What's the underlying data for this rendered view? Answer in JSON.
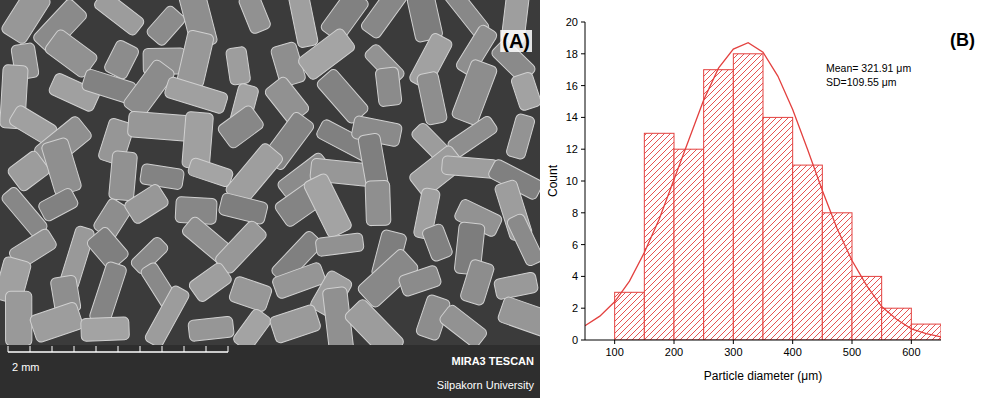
{
  "chart_data": {
    "type": "histogram",
    "panel_label": "(B)",
    "x_label": "Particle diameter (μm)",
    "y_label": "Count",
    "bins": [
      100,
      150,
      200,
      250,
      300,
      350,
      400,
      450,
      500,
      550,
      600,
      650
    ],
    "counts": [
      3,
      13,
      12,
      17,
      18,
      14,
      11,
      8,
      4,
      2,
      1
    ],
    "color": "#e3413f",
    "series": [
      {
        "type": "line",
        "color": "#e3413f",
        "x": [
          50,
          75,
          100,
          125,
          150,
          175,
          200,
          225,
          250,
          275,
          300,
          325,
          350,
          375,
          400,
          425,
          450,
          475,
          500,
          525,
          550,
          575,
          600,
          625,
          650
        ],
        "values": [
          0.9,
          1.5,
          2.4,
          3.7,
          5.5,
          7.6,
          10.1,
          12.6,
          15.1,
          17.1,
          18.3,
          18.7,
          18.1,
          16.6,
          14.5,
          12.0,
          9.4,
          7.0,
          5.0,
          3.4,
          2.1,
          1.3,
          0.7,
          0.4,
          0.2
        ]
      }
    ],
    "annotations": [
      "Mean= 321.91 μm",
      "SD=109.55 μm"
    ],
    "xlim": [
      50,
      650
    ],
    "xticks": [
      100,
      200,
      300,
      400,
      500,
      600
    ],
    "ylim": [
      0,
      20
    ],
    "yticks": [
      0,
      2,
      4,
      6,
      8,
      10,
      12,
      14,
      16,
      18,
      20
    ]
  },
  "sem_image": {
    "panel_label": "(A)",
    "scale_bar": "2 mm",
    "instrument": "MIRA3 TESCAN",
    "institution": "Silpakorn University"
  }
}
